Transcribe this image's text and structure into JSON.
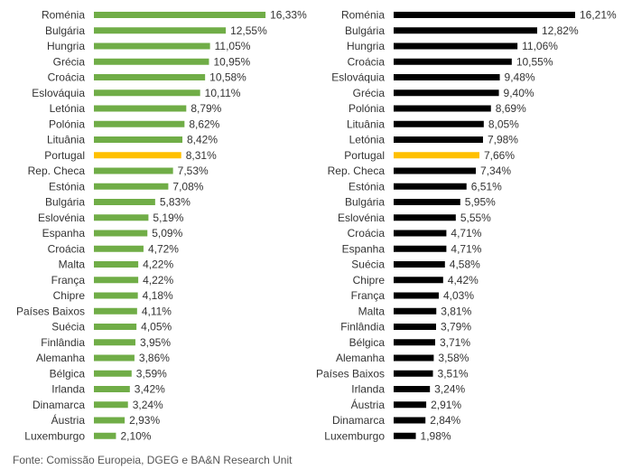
{
  "footer": {
    "source": "Fonte: Comissão Europeia, DGEG e BA&N Research Unit"
  },
  "colors": {
    "left_bar": "#70ad47",
    "right_bar": "#000000",
    "highlight": "#ffc000"
  },
  "chart_data": [
    {
      "type": "bar",
      "orientation": "horizontal",
      "title": "",
      "highlight": "Portugal",
      "categories": [
        "Roménia",
        "Bulgária",
        "Hungria",
        "Grécia",
        "Croácia",
        "Eslováquia",
        "Letónia",
        "Polónia",
        "Lituânia",
        "Portugal",
        "Rep. Checa",
        "Estónia",
        "Bulgária",
        "Eslovénia",
        "Espanha",
        "Croácia",
        "Malta",
        "França",
        "Chipre",
        "Países Baixos",
        "Suécia",
        "Finlândia",
        "Alemanha",
        "Bélgica",
        "Irlanda",
        "Dinamarca",
        "Áustria",
        "Luxemburgo"
      ],
      "values": [
        16.33,
        12.55,
        11.05,
        10.95,
        10.58,
        10.11,
        8.79,
        8.62,
        8.42,
        8.31,
        7.53,
        7.08,
        5.83,
        5.19,
        5.09,
        4.72,
        4.22,
        4.22,
        4.18,
        4.11,
        4.05,
        3.95,
        3.86,
        3.59,
        3.42,
        3.24,
        2.93,
        2.1
      ],
      "labels": [
        "16,33%",
        "12,55%",
        "11,05%",
        "10,95%",
        "10,58%",
        "10,11%",
        "8,79%",
        "8,62%",
        "8,42%",
        "8,31%",
        "7,53%",
        "7,08%",
        "5,83%",
        "5,19%",
        "5,09%",
        "4,72%",
        "4,22%",
        "4,22%",
        "4,18%",
        "4,11%",
        "4,05%",
        "3,95%",
        "3,86%",
        "3,59%",
        "3,42%",
        "3,24%",
        "2,93%",
        "2,10%"
      ]
    },
    {
      "type": "bar",
      "orientation": "horizontal",
      "title": "",
      "highlight": "Portugal",
      "categories": [
        "Roménia",
        "Bulgária",
        "Hungria",
        "Croácia",
        "Eslováquia",
        "Grécia",
        "Polónia",
        "Lituânia",
        "Letónia",
        "Portugal",
        "Rep. Checa",
        "Estónia",
        "Bulgária",
        "Eslovénia",
        "Croácia",
        "Espanha",
        "Suécia",
        "Chipre",
        "França",
        "Malta",
        "Finlândia",
        "Bélgica",
        "Alemanha",
        "Países Baixos",
        "Irlanda",
        "Áustria",
        "Dinamarca",
        "Luxemburgo"
      ],
      "values": [
        16.21,
        12.82,
        11.06,
        10.55,
        9.48,
        9.4,
        8.69,
        8.05,
        7.98,
        7.66,
        7.34,
        6.51,
        5.95,
        5.55,
        4.71,
        4.71,
        4.58,
        4.42,
        4.03,
        3.81,
        3.79,
        3.71,
        3.58,
        3.51,
        3.24,
        2.91,
        2.84,
        1.98
      ],
      "labels": [
        "16,21%",
        "12,82%",
        "11,06%",
        "10,55%",
        "9,48%",
        "9,40%",
        "8,69%",
        "8,05%",
        "7,98%",
        "7,66%",
        "7,34%",
        "6,51%",
        "5,95%",
        "5,55%",
        "4,71%",
        "4,71%",
        "4,58%",
        "4,42%",
        "4,03%",
        "3,81%",
        "3,79%",
        "3,71%",
        "3,58%",
        "3,51%",
        "3,24%",
        "2,91%",
        "2,84%",
        "1,98%"
      ]
    }
  ]
}
